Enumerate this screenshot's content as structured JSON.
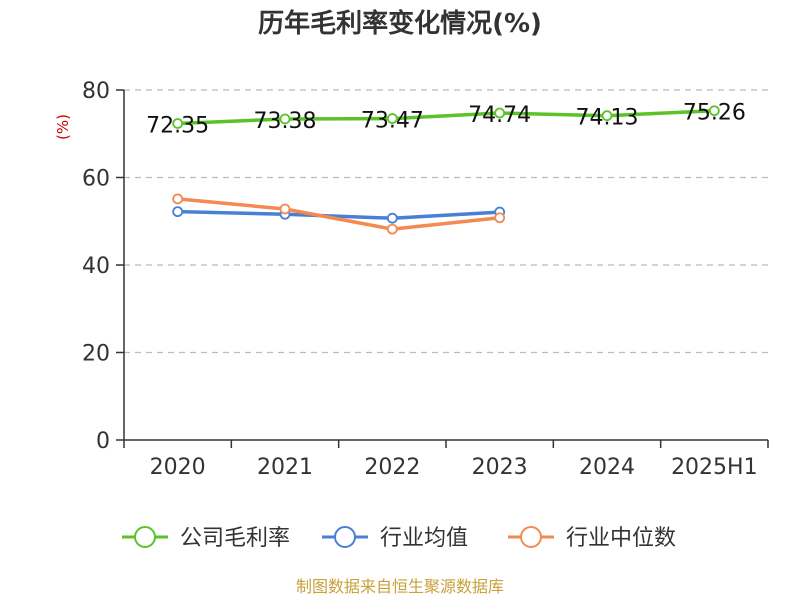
{
  "title": "历年毛利率变化情况(%)",
  "source": "制图数据来自恒生聚源数据库",
  "chart_data": {
    "type": "line",
    "title": "历年毛利率变化情况(%)",
    "ylabel": "(%)",
    "ylim": [
      0,
      80
    ],
    "yticks": [
      0,
      20,
      40,
      60,
      80
    ],
    "categories": [
      "2020",
      "2021",
      "2022",
      "2023",
      "2024",
      "2025H1"
    ],
    "grid": true,
    "legend_position": "bottom",
    "series": [
      {
        "name": "公司毛利率",
        "color": "#5ac328",
        "values": [
          72.35,
          73.38,
          73.47,
          74.74,
          74.13,
          75.26
        ],
        "labels": [
          "72.35",
          "73.38",
          "73.47",
          "74.74",
          "74.13",
          "75.26"
        ]
      },
      {
        "name": "行业均值",
        "color": "#4a7fd6",
        "values": [
          52.2,
          51.6,
          50.7,
          52.1,
          null,
          null
        ]
      },
      {
        "name": "行业中位数",
        "color": "#f28a52",
        "values": [
          55.1,
          52.8,
          48.2,
          50.8,
          null,
          null
        ]
      }
    ]
  }
}
